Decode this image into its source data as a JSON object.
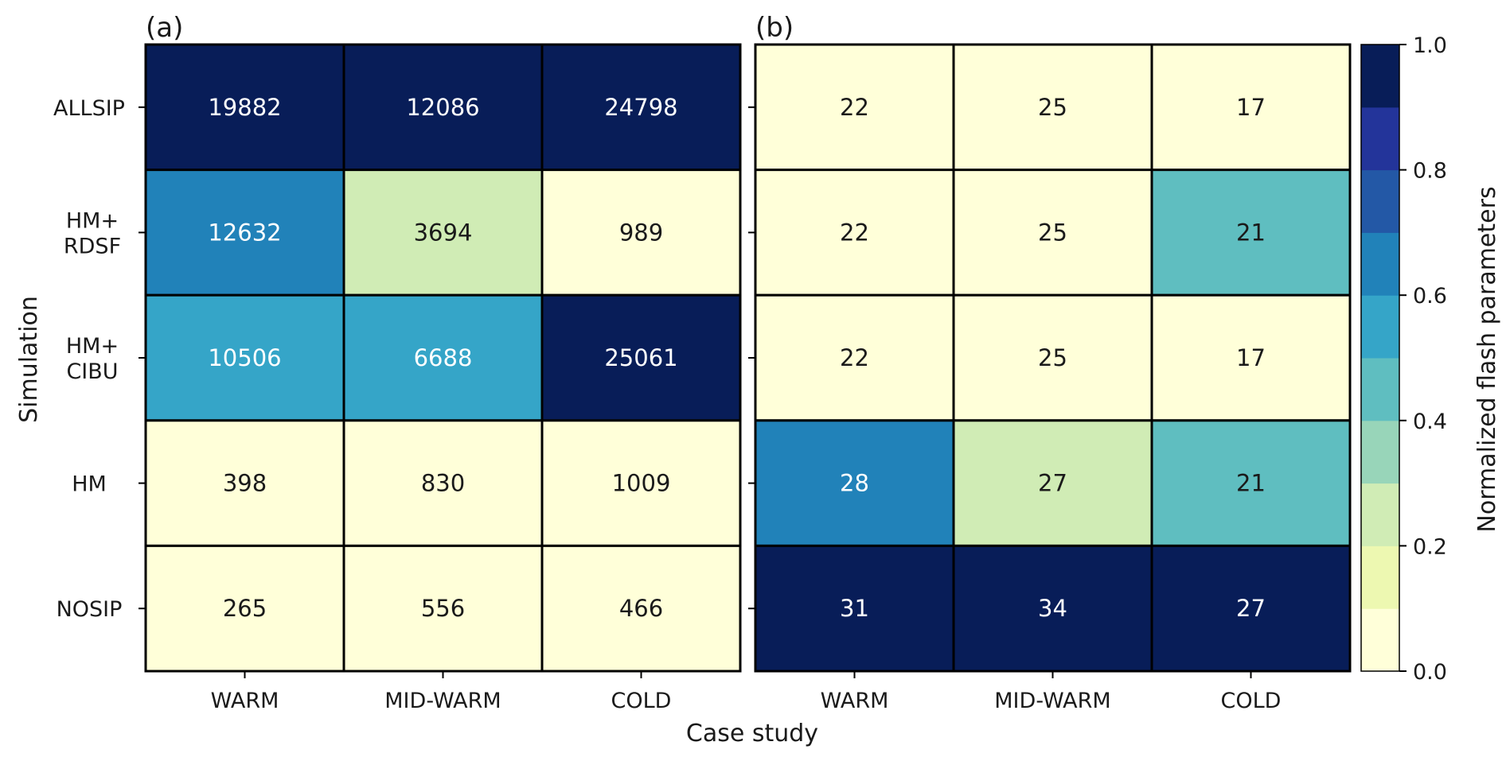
{
  "chart_data": [
    {
      "type": "heatmap",
      "panel_label": "(a)",
      "x_categories": [
        "WARM",
        "MID-WARM",
        "COLD"
      ],
      "y_categories": [
        "ALLSIP",
        "HM+\nRDSF",
        "HM+\nCIBU",
        "HM",
        "NOSIP"
      ],
      "ylabel": "Simulation",
      "cell_labels": [
        [
          "19882",
          "12086",
          "24798"
        ],
        [
          "12632",
          "3694",
          "989"
        ],
        [
          "10506",
          "6688",
          "25061"
        ],
        [
          "398",
          "830",
          "1009"
        ],
        [
          "265",
          "556",
          "466"
        ]
      ],
      "normalized_values": [
        [
          1.0,
          1.0,
          1.0
        ],
        [
          0.62,
          0.26,
          0.04
        ],
        [
          0.51,
          0.54,
          1.0
        ],
        [
          0.02,
          0.07,
          0.04
        ],
        [
          0.01,
          0.05,
          0.02
        ]
      ]
    },
    {
      "type": "heatmap",
      "panel_label": "(b)",
      "x_categories": [
        "WARM",
        "MID-WARM",
        "COLD"
      ],
      "y_categories": [
        "ALLSIP",
        "HM+\nRDSF",
        "HM+\nCIBU",
        "HM",
        "NOSIP"
      ],
      "cell_labels": [
        [
          "22",
          "25",
          "17"
        ],
        [
          "22",
          "25",
          "21"
        ],
        [
          "22",
          "25",
          "17"
        ],
        [
          "28",
          "27",
          "21"
        ],
        [
          "31",
          "34",
          "27"
        ]
      ],
      "normalized_values": [
        [
          0.0,
          0.0,
          0.0
        ],
        [
          0.0,
          0.0,
          0.4
        ],
        [
          0.0,
          0.0,
          0.0
        ],
        [
          0.67,
          0.2,
          0.4
        ],
        [
          1.0,
          1.0,
          1.0
        ]
      ]
    }
  ],
  "shared_xlabel": "Case study",
  "colorbar": {
    "label": "Normalized flash parameters",
    "range": [
      0.0,
      1.0
    ],
    "ticks": [
      "0.0",
      "0.2",
      "0.4",
      "0.6",
      "0.8",
      "1.0"
    ],
    "tick_values": [
      0.0,
      0.2,
      0.4,
      0.6,
      0.8,
      1.0
    ],
    "colors": [
      "#ffffd9",
      "#edf8b1",
      "#d0ecb5",
      "#98d5b9",
      "#5fbec0",
      "#35a5c8",
      "#2182b9",
      "#2358a6",
      "#23349a",
      "#081d58"
    ]
  },
  "colors": {
    "text_dark": "#1a1a1a",
    "text_light": "#ffffff",
    "grid_line": "#000000"
  }
}
